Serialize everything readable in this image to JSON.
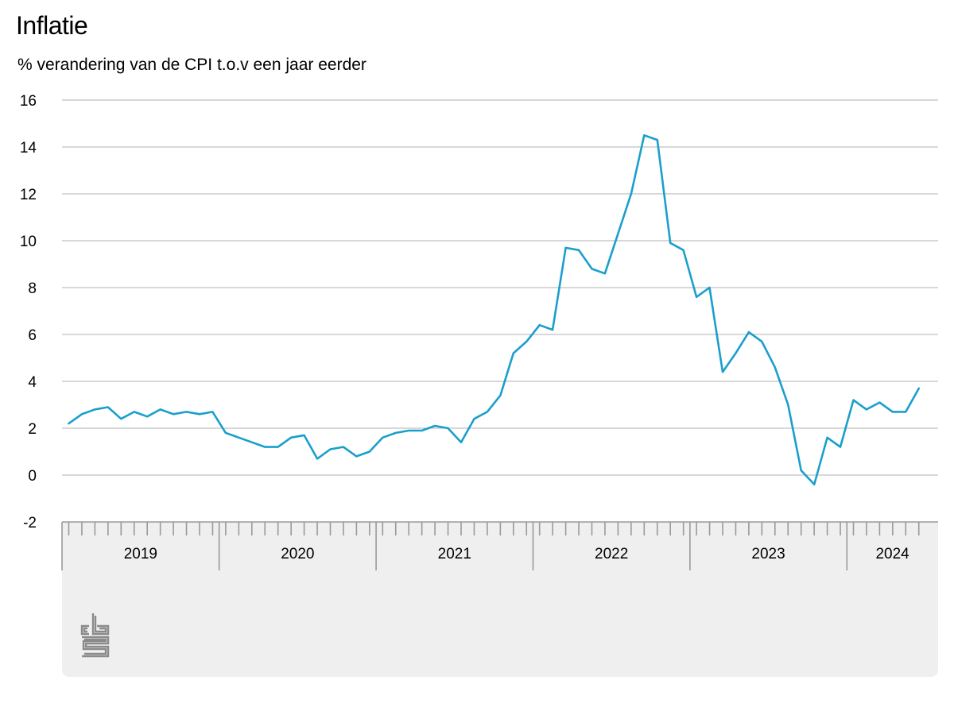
{
  "colors": {
    "line": "#1a9fcc",
    "grid": "#b0b0b0",
    "footer_bg": "#efefef",
    "tick": "#9a9a9a",
    "logo": "#8a8a8a"
  },
  "logo_icon": "cbs-logo-icon",
  "chart_data": {
    "type": "line",
    "title": "Inflatie",
    "subtitle": "% verandering van de CPI t.o.v een jaar eerder",
    "xlabel": "",
    "ylabel": "",
    "ylim": [
      -2,
      16
    ],
    "yticks": [
      16,
      14,
      12,
      10,
      8,
      6,
      4,
      2,
      0,
      -2
    ],
    "xlim": [
      "2019-01",
      "2024-06"
    ],
    "year_labels": [
      "2019",
      "2020",
      "2021",
      "2022",
      "2023",
      "2024"
    ],
    "grid": true,
    "legend": "none",
    "series": [
      {
        "x": [
          "2019-01",
          "2019-02",
          "2019-03",
          "2019-04",
          "2019-05",
          "2019-06",
          "2019-07",
          "2019-08",
          "2019-09",
          "2019-10",
          "2019-11",
          "2019-12",
          "2020-01",
          "2020-02",
          "2020-03",
          "2020-04",
          "2020-05",
          "2020-06",
          "2020-07",
          "2020-08",
          "2020-09",
          "2020-10",
          "2020-11",
          "2020-12",
          "2021-01",
          "2021-02",
          "2021-03",
          "2021-04",
          "2021-05",
          "2021-06",
          "2021-07",
          "2021-08",
          "2021-09",
          "2021-10",
          "2021-11",
          "2021-12",
          "2022-01",
          "2022-02",
          "2022-03",
          "2022-04",
          "2022-05",
          "2022-06",
          "2022-07",
          "2022-08",
          "2022-09",
          "2022-10",
          "2022-11",
          "2022-12",
          "2023-01",
          "2023-02",
          "2023-03",
          "2023-04",
          "2023-05",
          "2023-06",
          "2023-07",
          "2023-08",
          "2023-09",
          "2023-10",
          "2023-11",
          "2023-12",
          "2024-01",
          "2024-02",
          "2024-03",
          "2024-04",
          "2024-05",
          "2024-06"
        ],
        "values": [
          2.2,
          2.6,
          2.8,
          2.9,
          2.4,
          2.7,
          2.5,
          2.8,
          2.6,
          2.7,
          2.6,
          2.7,
          1.8,
          1.6,
          1.4,
          1.2,
          1.2,
          1.6,
          1.7,
          0.7,
          1.1,
          1.2,
          0.8,
          1.0,
          1.6,
          1.8,
          1.9,
          1.9,
          2.1,
          2.0,
          1.4,
          2.4,
          2.7,
          3.4,
          5.2,
          5.7,
          6.4,
          6.2,
          9.7,
          9.6,
          8.8,
          8.6,
          10.3,
          12.0,
          14.5,
          14.3,
          9.9,
          9.6,
          7.6,
          8.0,
          4.4,
          5.2,
          6.1,
          5.7,
          4.6,
          3.0,
          0.2,
          -0.4,
          1.6,
          1.2,
          3.2,
          2.8,
          3.1,
          2.7,
          2.7,
          3.7
        ]
      }
    ]
  }
}
